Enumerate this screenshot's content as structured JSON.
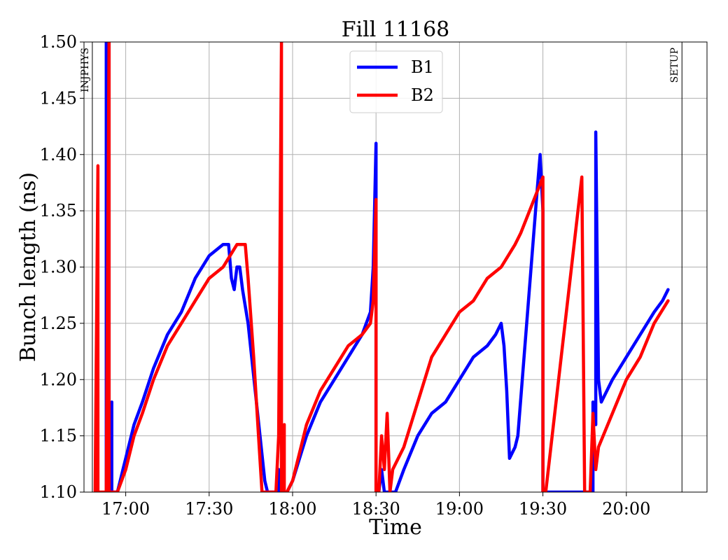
{
  "chart_data": {
    "type": "line",
    "title": "Fill 11168",
    "xlabel": "Time",
    "ylabel": "Bunch length (ns)",
    "xlim": [
      "16:45",
      "20:29"
    ],
    "ylim": [
      1.1,
      1.5
    ],
    "x_ticks": [
      "17:00",
      "17:30",
      "18:00",
      "18:30",
      "19:00",
      "19:30",
      "20:00"
    ],
    "y_ticks": [
      "1.10",
      "1.15",
      "1.20",
      "1.25",
      "1.30",
      "1.35",
      "1.40",
      "1.45",
      "1.50"
    ],
    "grid": true,
    "legend_position": "top-center",
    "markers": [
      {
        "time": "16:48",
        "label": "INJPHYS"
      },
      {
        "time": "20:20",
        "label": "SETUP"
      }
    ],
    "series": [
      {
        "name": "B1",
        "color": "#0000ff",
        "points": [
          [
            "16:53",
            1.1
          ],
          [
            "16:53",
            1.5
          ],
          [
            "16:54",
            1.5
          ],
          [
            "16:54",
            1.16
          ],
          [
            "16:55",
            1.18
          ],
          [
            "16:55",
            1.1
          ],
          [
            "16:56",
            1.1
          ],
          [
            "16:57",
            1.1
          ],
          [
            "16:58",
            1.11
          ],
          [
            "16:59",
            1.12
          ],
          [
            "17:00",
            1.13
          ],
          [
            "17:03",
            1.16
          ],
          [
            "17:06",
            1.18
          ],
          [
            "17:10",
            1.21
          ],
          [
            "17:15",
            1.24
          ],
          [
            "17:20",
            1.26
          ],
          [
            "17:25",
            1.29
          ],
          [
            "17:30",
            1.31
          ],
          [
            "17:35",
            1.32
          ],
          [
            "17:37",
            1.32
          ],
          [
            "17:38",
            1.29
          ],
          [
            "17:39",
            1.28
          ],
          [
            "17:40",
            1.3
          ],
          [
            "17:41",
            1.3
          ],
          [
            "17:42",
            1.28
          ],
          [
            "17:44",
            1.25
          ],
          [
            "17:47",
            1.18
          ],
          [
            "17:50",
            1.11
          ],
          [
            "17:51",
            1.1
          ],
          [
            "17:53",
            1.1
          ],
          [
            "17:55",
            1.1
          ],
          [
            "17:55",
            1.12
          ],
          [
            "17:56",
            1.1
          ],
          [
            "17:58",
            1.1
          ],
          [
            "18:00",
            1.11
          ],
          [
            "18:05",
            1.15
          ],
          [
            "18:10",
            1.18
          ],
          [
            "18:15",
            1.2
          ],
          [
            "18:20",
            1.22
          ],
          [
            "18:25",
            1.24
          ],
          [
            "18:28",
            1.26
          ],
          [
            "18:29",
            1.3
          ],
          [
            "18:30",
            1.41
          ],
          [
            "18:30",
            1.1
          ],
          [
            "18:31",
            1.1
          ],
          [
            "18:32",
            1.12
          ],
          [
            "18:33",
            1.1
          ],
          [
            "18:34",
            1.1
          ],
          [
            "18:35",
            1.1
          ],
          [
            "18:37",
            1.1
          ],
          [
            "18:40",
            1.12
          ],
          [
            "18:45",
            1.15
          ],
          [
            "18:50",
            1.17
          ],
          [
            "18:55",
            1.18
          ],
          [
            "19:00",
            1.2
          ],
          [
            "19:05",
            1.22
          ],
          [
            "19:10",
            1.23
          ],
          [
            "19:13",
            1.24
          ],
          [
            "19:15",
            1.25
          ],
          [
            "19:16",
            1.23
          ],
          [
            "19:17",
            1.19
          ],
          [
            "19:18",
            1.13
          ],
          [
            "19:20",
            1.14
          ],
          [
            "19:21",
            1.15
          ],
          [
            "19:28",
            1.37
          ],
          [
            "19:29",
            1.4
          ],
          [
            "19:30",
            1.35
          ],
          [
            "19:30",
            1.1
          ],
          [
            "19:43",
            1.1
          ],
          [
            "19:44",
            1.1
          ],
          [
            "19:44",
            1.1
          ],
          [
            "19:46",
            1.1
          ],
          [
            "19:48",
            1.1
          ],
          [
            "19:48",
            1.18
          ],
          [
            "19:49",
            1.16
          ],
          [
            "19:49",
            1.42
          ],
          [
            "19:50",
            1.2
          ],
          [
            "19:51",
            1.18
          ],
          [
            "19:55",
            1.2
          ],
          [
            "20:00",
            1.22
          ],
          [
            "20:05",
            1.24
          ],
          [
            "20:10",
            1.26
          ],
          [
            "20:13",
            1.27
          ],
          [
            "20:15",
            1.28
          ]
        ]
      },
      {
        "name": "B2",
        "color": "#ff0000",
        "points": [
          [
            "16:49",
            1.1
          ],
          [
            "16:50",
            1.39
          ],
          [
            "16:50",
            1.1
          ],
          [
            "16:53",
            1.1
          ],
          [
            "16:54",
            1.5
          ],
          [
            "16:54",
            1.1
          ],
          [
            "16:55",
            1.1
          ],
          [
            "16:57",
            1.1
          ],
          [
            "17:00",
            1.12
          ],
          [
            "17:03",
            1.15
          ],
          [
            "17:06",
            1.17
          ],
          [
            "17:10",
            1.2
          ],
          [
            "17:15",
            1.23
          ],
          [
            "17:20",
            1.25
          ],
          [
            "17:25",
            1.27
          ],
          [
            "17:30",
            1.29
          ],
          [
            "17:35",
            1.3
          ],
          [
            "17:40",
            1.32
          ],
          [
            "17:43",
            1.32
          ],
          [
            "17:44",
            1.29
          ],
          [
            "17:46",
            1.22
          ],
          [
            "17:48",
            1.14
          ],
          [
            "17:49",
            1.1
          ],
          [
            "17:52",
            1.1
          ],
          [
            "17:54",
            1.1
          ],
          [
            "17:55",
            1.15
          ],
          [
            "17:56",
            1.5
          ],
          [
            "17:56",
            1.1
          ],
          [
            "17:57",
            1.16
          ],
          [
            "17:57",
            1.1
          ],
          [
            "17:58",
            1.1
          ],
          [
            "18:00",
            1.11
          ],
          [
            "18:05",
            1.16
          ],
          [
            "18:10",
            1.19
          ],
          [
            "18:15",
            1.21
          ],
          [
            "18:20",
            1.23
          ],
          [
            "18:25",
            1.24
          ],
          [
            "18:28",
            1.25
          ],
          [
            "18:29",
            1.27
          ],
          [
            "18:30",
            1.36
          ],
          [
            "18:30",
            1.1
          ],
          [
            "18:31",
            1.1
          ],
          [
            "18:32",
            1.15
          ],
          [
            "18:33",
            1.12
          ],
          [
            "18:34",
            1.17
          ],
          [
            "18:35",
            1.1
          ],
          [
            "18:36",
            1.12
          ],
          [
            "18:40",
            1.14
          ],
          [
            "18:45",
            1.18
          ],
          [
            "18:50",
            1.22
          ],
          [
            "18:55",
            1.24
          ],
          [
            "19:00",
            1.26
          ],
          [
            "19:05",
            1.27
          ],
          [
            "19:10",
            1.29
          ],
          [
            "19:15",
            1.3
          ],
          [
            "19:20",
            1.32
          ],
          [
            "19:22",
            1.33
          ],
          [
            "19:30",
            1.38
          ],
          [
            "19:30",
            1.1
          ],
          [
            "19:31",
            1.1
          ],
          [
            "19:44",
            1.38
          ],
          [
            "19:45",
            1.1
          ],
          [
            "19:47",
            1.1
          ],
          [
            "19:48",
            1.17
          ],
          [
            "19:49",
            1.12
          ],
          [
            "19:50",
            1.14
          ],
          [
            "19:55",
            1.17
          ],
          [
            "20:00",
            1.2
          ],
          [
            "20:05",
            1.22
          ],
          [
            "20:10",
            1.25
          ],
          [
            "20:15",
            1.27
          ]
        ]
      }
    ]
  }
}
